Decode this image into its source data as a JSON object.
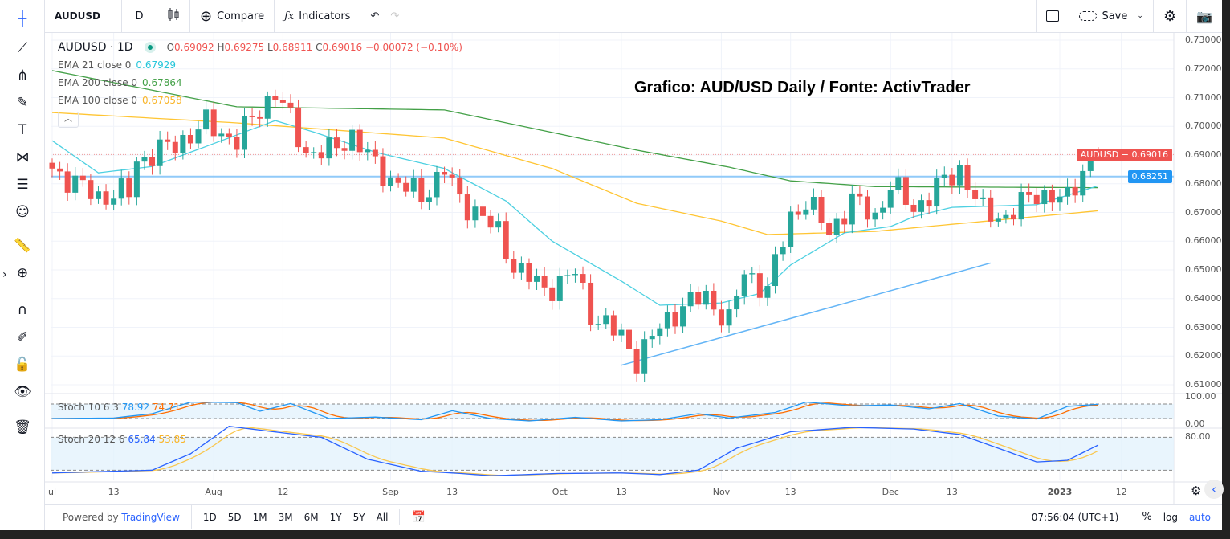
{
  "toolbar": {
    "symbol": "AUDUSD",
    "interval": "D",
    "compare": "Compare",
    "indicators": "Indicators",
    "save": "Save"
  },
  "left_tools": [
    "crosshair-icon",
    "trend-line-icon",
    "pitchfork-icon",
    "brush-icon",
    "text-icon",
    "pattern-icon",
    "fib-icon",
    "emoji-icon",
    "ruler-icon",
    "zoom-in-icon",
    "magnet-icon",
    "lock-drawing-icon",
    "unlock-icon",
    "eye-icon",
    "trash-icon"
  ],
  "legend": {
    "symbol": "AUDUSD · 1D",
    "o_label": "O",
    "o": "0.69092",
    "h_label": "H",
    "h": "0.69275",
    "l_label": "L",
    "l": "0.68911",
    "c_label": "C",
    "c": "0.69016",
    "change": "−0.00072 (−0.10%)",
    "ema21_label": "EMA 21 close 0",
    "ema21": "0.67929",
    "ema200_label": "EMA 200 close 0",
    "ema200": "0.67864",
    "ema100_label": "EMA 100 close 0",
    "ema100": "0.67058",
    "stoch1_label": "Stoch 10 6 3",
    "stoch1_k": "78.92",
    "stoch1_d": "74.71",
    "stoch2_label": "Stoch 20 12 6",
    "stoch2_k": "65.84",
    "stoch2_d": "53.85"
  },
  "annotation": "Grafico: AUD/USD Daily / Fonte: ActivTrader",
  "price_badge": {
    "label": "AUDUSD",
    "value": "0.69016"
  },
  "hline_badge": "0.68251",
  "price_axis": [
    "0.73000",
    "0.72000",
    "0.71000",
    "0.70000",
    "0.69000",
    "0.68000",
    "0.67000",
    "0.66000",
    "0.65000",
    "0.64000",
    "0.63000",
    "0.62000",
    "0.61000"
  ],
  "stoch1_axis": [
    "100.00",
    "0.00"
  ],
  "stoch2_axis": [
    "80.00"
  ],
  "time_axis": [
    [
      "2022-07-01",
      "ul"
    ],
    [
      "2022-07-13",
      "13"
    ],
    [
      "2022-08-01",
      "Aug"
    ],
    [
      "2022-08-12",
      "12"
    ],
    [
      "2022-09-01",
      "Sep"
    ],
    [
      "2022-09-13",
      "13"
    ],
    [
      "2022-10-03",
      "Oct"
    ],
    [
      "2022-10-13",
      "13"
    ],
    [
      "2022-11-01",
      "Nov"
    ],
    [
      "2022-11-14",
      "13"
    ],
    [
      "2022-12-01",
      "Dec"
    ],
    [
      "2022-12-13",
      "13"
    ],
    [
      "2023-01-02",
      "2023"
    ],
    [
      "2023-01-12",
      "12"
    ]
  ],
  "bottom": {
    "powered": "Powered by ",
    "brand": "TradingView",
    "ranges": [
      "1D",
      "5D",
      "1M",
      "3M",
      "6M",
      "1Y",
      "5Y",
      "All"
    ],
    "time": "07:56:04 (UTC+1)",
    "pct": "%",
    "log": "log",
    "auto": "auto"
  },
  "colors": {
    "up": "#26a69a",
    "down": "#ef5350",
    "ema21": "#4dd0e1",
    "ema200": "#43a047",
    "ema100": "#ffc533",
    "stoch_k": "#2962ff",
    "stoch_d": "#ff9800",
    "hline": "#2196f3"
  },
  "chart_data": {
    "type": "candlestick",
    "ylim": [
      0.605,
      0.732
    ],
    "last_candle": {
      "date": "2023-01-09",
      "o": 0.69092,
      "h": 0.69275,
      "l": 0.68911,
      "c": 0.69016
    },
    "close_path": [
      [
        "2022-07-01",
        0.6853
      ],
      [
        "2022-07-06",
        0.68
      ],
      [
        "2022-07-11",
        0.6755
      ],
      [
        "2022-07-15",
        0.677
      ],
      [
        "2022-07-18",
        0.688
      ],
      [
        "2022-07-25",
        0.6937
      ],
      [
        "2022-07-29",
        0.7007
      ],
      [
        "2022-08-04",
        0.695
      ],
      [
        "2022-08-09",
        0.706
      ],
      [
        "2022-08-11",
        0.712
      ],
      [
        "2022-08-15",
        0.702
      ],
      [
        "2022-08-17",
        0.691
      ],
      [
        "2022-08-22",
        0.691
      ],
      [
        "2022-08-25",
        0.697
      ],
      [
        "2022-08-30",
        0.686
      ],
      [
        "2022-09-02",
        0.68
      ],
      [
        "2022-09-07",
        0.6755
      ],
      [
        "2022-09-12",
        0.685
      ],
      [
        "2022-09-14",
        0.674
      ],
      [
        "2022-09-16",
        0.671
      ],
      [
        "2022-09-21",
        0.6626
      ],
      [
        "2022-09-23",
        0.6517
      ],
      [
        "2022-09-29",
        0.643
      ],
      [
        "2022-10-05",
        0.6489
      ],
      [
        "2022-10-07",
        0.635
      ],
      [
        "2022-10-13",
        0.6265
      ],
      [
        "2022-10-17",
        0.619
      ],
      [
        "2022-10-20",
        0.63
      ],
      [
        "2022-10-25",
        0.6377
      ],
      [
        "2022-10-28",
        0.6405
      ],
      [
        "2022-11-02",
        0.632
      ],
      [
        "2022-11-04",
        0.649
      ],
      [
        "2022-11-09",
        0.6433
      ],
      [
        "2022-11-14",
        0.6685
      ],
      [
        "2022-11-16",
        0.6741
      ],
      [
        "2022-11-21",
        0.663
      ],
      [
        "2022-11-24",
        0.6741
      ],
      [
        "2022-11-29",
        0.6685
      ],
      [
        "2022-12-01",
        0.6797
      ],
      [
        "2022-12-06",
        0.6713
      ],
      [
        "2022-12-09",
        0.6783
      ],
      [
        "2022-12-14",
        0.6853
      ],
      [
        "2022-12-19",
        0.6699
      ],
      [
        "2022-12-22",
        0.6685
      ],
      [
        "2022-12-28",
        0.6769
      ],
      [
        "2023-01-03",
        0.6741
      ],
      [
        "2023-01-05",
        0.6853
      ],
      [
        "2023-01-09",
        0.69016
      ]
    ],
    "ema21": [
      [
        "2022-07-01",
        0.695
      ],
      [
        "2022-07-11",
        0.6838
      ],
      [
        "2022-07-20",
        0.686
      ],
      [
        "2022-07-29",
        0.693
      ],
      [
        "2022-08-11",
        0.702
      ],
      [
        "2022-08-18",
        0.698
      ],
      [
        "2022-08-30",
        0.691
      ],
      [
        "2022-09-12",
        0.6853
      ],
      [
        "2022-09-22",
        0.674
      ],
      [
        "2022-09-30",
        0.66
      ],
      [
        "2022-10-13",
        0.6461
      ],
      [
        "2022-10-20",
        0.6377
      ],
      [
        "2022-11-01",
        0.6385
      ],
      [
        "2022-11-08",
        0.6418
      ],
      [
        "2022-11-14",
        0.6517
      ],
      [
        "2022-11-23",
        0.6629
      ],
      [
        "2022-12-01",
        0.6651
      ],
      [
        "2022-12-06",
        0.6685
      ],
      [
        "2022-12-13",
        0.6718
      ],
      [
        "2022-12-28",
        0.6727
      ],
      [
        "2023-01-09",
        0.67929
      ]
    ],
    "ema200": [
      [
        "2022-07-01",
        0.7194
      ],
      [
        "2022-08-04",
        0.7068
      ],
      [
        "2022-09-12",
        0.7057
      ],
      [
        "2022-10-17",
        0.6917
      ],
      [
        "2022-11-02",
        0.6858
      ],
      [
        "2022-11-14",
        0.681
      ],
      [
        "2022-11-29",
        0.679
      ],
      [
        "2023-01-09",
        0.67864
      ]
    ],
    "ema100": [
      [
        "2022-07-01",
        0.7048
      ],
      [
        "2022-08-04",
        0.7012
      ],
      [
        "2022-09-12",
        0.6959
      ],
      [
        "2022-09-30",
        0.6853
      ],
      [
        "2022-10-17",
        0.6732
      ],
      [
        "2022-11-01",
        0.667
      ],
      [
        "2022-11-09",
        0.6623
      ],
      [
        "2022-11-29",
        0.6634
      ],
      [
        "2023-01-09",
        0.67058
      ]
    ],
    "hline": 0.68251,
    "trendline": [
      [
        "2022-10-13",
        0.6168
      ],
      [
        "2022-12-20",
        0.6524
      ]
    ],
    "stoch1": {
      "bands": [
        20,
        80
      ],
      "k": [
        [
          "2022-07-01",
          20
        ],
        [
          "2022-07-13",
          22
        ],
        [
          "2022-07-20",
          40
        ],
        [
          "2022-07-27",
          88
        ],
        [
          "2022-08-04",
          86
        ],
        [
          "2022-08-09",
          50
        ],
        [
          "2022-08-15",
          82
        ],
        [
          "2022-08-22",
          20
        ],
        [
          "2022-08-30",
          26
        ],
        [
          "2022-09-07",
          15
        ],
        [
          "2022-09-13",
          52
        ],
        [
          "2022-09-20",
          20
        ],
        [
          "2022-09-27",
          10
        ],
        [
          "2022-10-05",
          25
        ],
        [
          "2022-10-13",
          10
        ],
        [
          "2022-10-20",
          15
        ],
        [
          "2022-10-27",
          40
        ],
        [
          "2022-11-02",
          22
        ],
        [
          "2022-11-10",
          45
        ],
        [
          "2022-11-16",
          88
        ],
        [
          "2022-11-24",
          72
        ],
        [
          "2022-12-01",
          76
        ],
        [
          "2022-12-08",
          60
        ],
        [
          "2022-12-14",
          82
        ],
        [
          "2022-12-21",
          30
        ],
        [
          "2022-12-28",
          18
        ],
        [
          "2023-01-03",
          70
        ],
        [
          "2023-01-09",
          78.92
        ]
      ]
    },
    "stoch2": {
      "bands": [
        20,
        80
      ],
      "k": [
        [
          "2022-07-01",
          15
        ],
        [
          "2022-07-20",
          20
        ],
        [
          "2022-07-27",
          50
        ],
        [
          "2022-08-03",
          100
        ],
        [
          "2022-08-12",
          88
        ],
        [
          "2022-08-19",
          80
        ],
        [
          "2022-08-29",
          40
        ],
        [
          "2022-09-07",
          18
        ],
        [
          "2022-09-13",
          15
        ],
        [
          "2022-09-20",
          10
        ],
        [
          "2022-10-01",
          14
        ],
        [
          "2022-10-13",
          15
        ],
        [
          "2022-10-20",
          12
        ],
        [
          "2022-10-27",
          20
        ],
        [
          "2022-11-03",
          60
        ],
        [
          "2022-11-14",
          90
        ],
        [
          "2022-11-24",
          98
        ],
        [
          "2022-12-06",
          95
        ],
        [
          "2022-12-14",
          85
        ],
        [
          "2022-12-21",
          60
        ],
        [
          "2022-12-28",
          35
        ],
        [
          "2023-01-03",
          38
        ],
        [
          "2023-01-09",
          65.84
        ]
      ]
    }
  }
}
